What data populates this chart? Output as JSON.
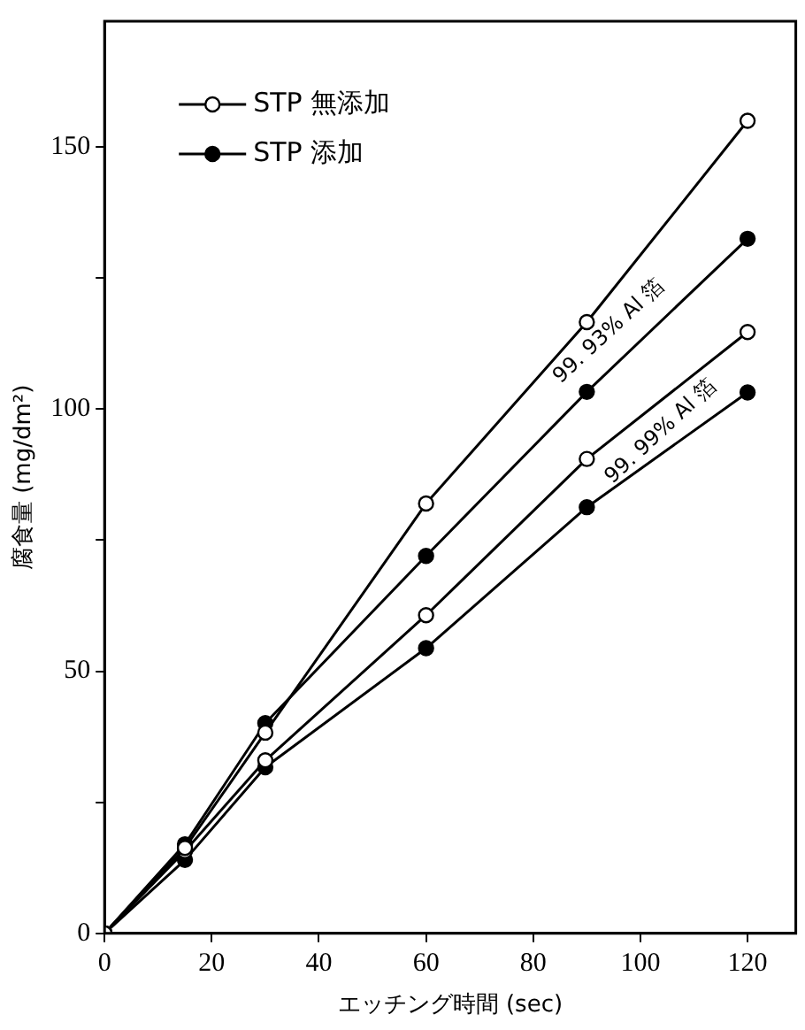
{
  "chart_data": {
    "type": "line",
    "xlabel": "エッチング時間 (sec)",
    "ylabel": "腐食量 (mg/dm²)",
    "x": [
      0,
      15,
      30,
      60,
      90,
      120
    ],
    "xlim": [
      0,
      129
    ],
    "xticks": [
      0,
      20,
      40,
      60,
      80,
      100,
      120
    ],
    "ylim": [
      0,
      174
    ],
    "yticks": [
      0,
      {
        "value": 25,
        "label": null
      },
      50,
      {
        "value": 75,
        "label": null
      },
      100,
      {
        "value": 125,
        "label": null
      },
      150
    ],
    "series": [
      {
        "name": "STP 無添加",
        "color": "#000000",
        "colors": [
          "#ffffff",
          "#ffffff",
          "#ffffff",
          "#ffffff",
          "#ffffff",
          "#ffffff"
        ],
        "values": [
          0,
          16.3,
          38.3,
          82,
          116.6,
          155
        ]
      },
      {
        "name": "STP 添加",
        "color": "#000000",
        "values": [
          0,
          17,
          40.1,
          72,
          103.3,
          132.5
        ]
      },
      {
        "color": "#000000",
        "colors": [
          "#ffffff",
          "#ffffff",
          "#ffffff",
          "#ffffff",
          "#ffffff",
          "#ffffff"
        ],
        "values": [
          0,
          15.7,
          33,
          60.7,
          90.5,
          114.7
        ]
      },
      {
        "color": "#000000",
        "values": [
          0,
          14,
          31.7,
          54.4,
          81.3,
          103.2
        ]
      }
    ],
    "annotations": [
      "99. 93% Al 箔",
      "99. 99% Al 箔"
    ],
    "marker": "circle",
    "line_style": "solid",
    "grid": false,
    "legend": "top left"
  }
}
